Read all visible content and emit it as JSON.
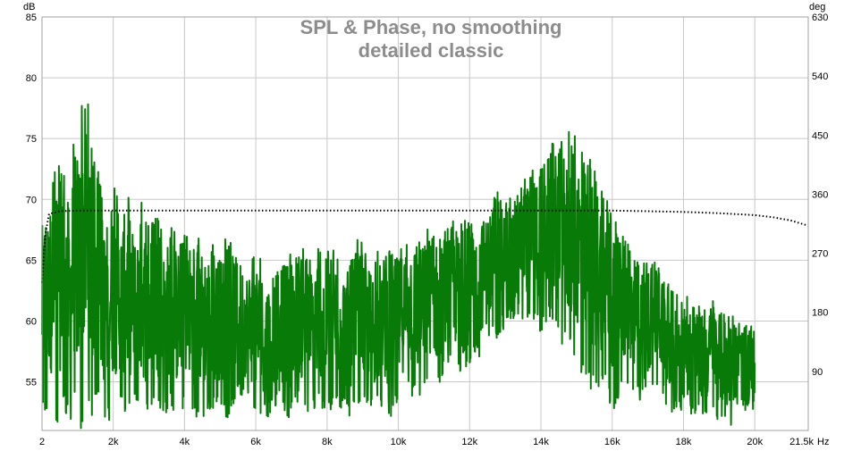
{
  "chart_data": {
    "type": "line",
    "title": "SPL & Phase, no smoothing",
    "subtitle": "detailed classic",
    "xlabel": "",
    "ylabel_left": "dB",
    "ylabel_right": "deg",
    "x_unit": "Hz",
    "xlim": [
      2,
      21500
    ],
    "ylim_left": [
      51,
      85
    ],
    "ylim_right": [
      0,
      630
    ],
    "grid": true,
    "x_ticks": [
      {
        "value": 2,
        "label": "2"
      },
      {
        "value": 2000,
        "label": "2k"
      },
      {
        "value": 4000,
        "label": "4k"
      },
      {
        "value": 6000,
        "label": "6k"
      },
      {
        "value": 8000,
        "label": "8k"
      },
      {
        "value": 10000,
        "label": "10k"
      },
      {
        "value": 12000,
        "label": "12k"
      },
      {
        "value": 14000,
        "label": "14k"
      },
      {
        "value": 16000,
        "label": "16k"
      },
      {
        "value": 18000,
        "label": "18k"
      },
      {
        "value": 20000,
        "label": "20k"
      },
      {
        "value": 21500,
        "label": "21.5k"
      }
    ],
    "y_ticks_left": [
      {
        "value": 85,
        "label": "85"
      },
      {
        "value": 80,
        "label": "80"
      },
      {
        "value": 75,
        "label": "75"
      },
      {
        "value": 70,
        "label": "70"
      },
      {
        "value": 65,
        "label": "65"
      },
      {
        "value": 60,
        "label": "60"
      },
      {
        "value": 55,
        "label": "55"
      }
    ],
    "y_ticks_right": [
      {
        "value": 630,
        "label": "630"
      },
      {
        "value": 540,
        "label": "540"
      },
      {
        "value": 450,
        "label": "450"
      },
      {
        "value": 360,
        "label": "360"
      },
      {
        "value": 270,
        "label": "270"
      },
      {
        "value": 180,
        "label": "180"
      },
      {
        "value": 90,
        "label": "90"
      }
    ],
    "series": [
      {
        "axis": "left",
        "style": "solid",
        "color": "#087a08",
        "x": [
          2,
          100,
          200,
          300,
          400,
          500,
          600,
          700,
          800,
          900,
          1000,
          1100,
          1200,
          1300,
          1400,
          1500,
          1600,
          1700,
          1800,
          1900,
          2000,
          2200,
          2400,
          2600,
          2800,
          3000,
          3200,
          3400,
          3600,
          3800,
          4000,
          4300,
          4600,
          4900,
          5200,
          5500,
          5800,
          6000,
          6300,
          6600,
          6900,
          7200,
          7500,
          7800,
          8000,
          8300,
          8600,
          8900,
          9200,
          9500,
          9800,
          10000,
          10300,
          10600,
          10900,
          11200,
          11500,
          11800,
          12000,
          12300,
          12600,
          12900,
          13200,
          13500,
          13800,
          14000,
          14300,
          14600,
          14900,
          15200,
          15500,
          15800,
          16000,
          16300,
          16600,
          16900,
          17200,
          17500,
          17800,
          18000,
          18300,
          18600,
          18900,
          19200,
          19500,
          19800,
          20000
        ],
        "lower": [
          52,
          52,
          53,
          52,
          51,
          52,
          53,
          52,
          51,
          53,
          52,
          51,
          53,
          52,
          52,
          54,
          53,
          52,
          51,
          52,
          52,
          53,
          52,
          53,
          52,
          52,
          53,
          52,
          53,
          52,
          53,
          52,
          52,
          53,
          52,
          54,
          53,
          52,
          52,
          53,
          52,
          53,
          52,
          53,
          52,
          53,
          52,
          53,
          52,
          53,
          52,
          53,
          54,
          53,
          55,
          54,
          56,
          55,
          56,
          57,
          58,
          59,
          60,
          60,
          60,
          59,
          60,
          58,
          57,
          55,
          54,
          55,
          52,
          55,
          54,
          53,
          55,
          53,
          52,
          53,
          52,
          52,
          52,
          51,
          52,
          52,
          52
        ],
        "upper": [
          69,
          71,
          70,
          72,
          74,
          73,
          78,
          72,
          70,
          76,
          74,
          78,
          79,
          78,
          75,
          74,
          72,
          70,
          69,
          71,
          72,
          69,
          71,
          68,
          70,
          68,
          69,
          67,
          68,
          67,
          68,
          67,
          67,
          66,
          67,
          66,
          65,
          66,
          64,
          65,
          66,
          67,
          65,
          67,
          66,
          66,
          65,
          67,
          65,
          66,
          67,
          66,
          68,
          67,
          68,
          67,
          69,
          68,
          69,
          69,
          70,
          71,
          71,
          72,
          73,
          74,
          75,
          75,
          76,
          74,
          73,
          71,
          69,
          67,
          66,
          65,
          65,
          64,
          63,
          62,
          62,
          61,
          62,
          61,
          60,
          60,
          60
        ]
      },
      {
        "axis": "right",
        "style": "dotted",
        "color": "#000000",
        "x": [
          2,
          50,
          100,
          200,
          500,
          1000,
          2000,
          4000,
          6000,
          8000,
          10000,
          12000,
          14000,
          16000,
          17000,
          18000,
          19000,
          20000,
          20500,
          21000,
          21500
        ],
        "values": [
          225,
          265,
          300,
          330,
          334,
          335,
          335,
          335,
          335,
          335,
          335,
          335,
          335,
          335,
          334,
          333,
          331,
          328,
          325,
          320,
          312
        ]
      }
    ]
  }
}
